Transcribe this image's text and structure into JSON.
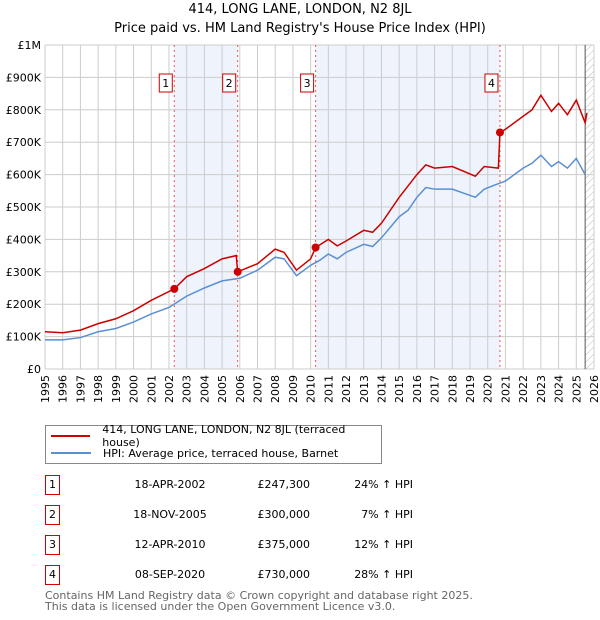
{
  "chart_data": {
    "type": "line",
    "title": "414, LONG LANE, LONDON, N2 8JL",
    "subtitle": "Price paid vs. HM Land Registry's House Price Index (HPI)",
    "xlim": [
      1995,
      2026
    ],
    "ylim": [
      0,
      1000000
    ],
    "yticks": [
      {
        "v": 0,
        "label": "£0"
      },
      {
        "v": 100000,
        "label": "£100K"
      },
      {
        "v": 200000,
        "label": "£200K"
      },
      {
        "v": 300000,
        "label": "£300K"
      },
      {
        "v": 400000,
        "label": "£400K"
      },
      {
        "v": 500000,
        "label": "£500K"
      },
      {
        "v": 600000,
        "label": "£600K"
      },
      {
        "v": 700000,
        "label": "£700K"
      },
      {
        "v": 800000,
        "label": "£800K"
      },
      {
        "v": 900000,
        "label": "£900K"
      },
      {
        "v": 1000000,
        "label": "£1M"
      }
    ],
    "xticks": [
      "1995",
      "1996",
      "1997",
      "1998",
      "1999",
      "2000",
      "2001",
      "2002",
      "2003",
      "2004",
      "2005",
      "2006",
      "2007",
      "2008",
      "2009",
      "2010",
      "2011",
      "2012",
      "2013",
      "2014",
      "2015",
      "2016",
      "2017",
      "2018",
      "2019",
      "2020",
      "2021",
      "2022",
      "2023",
      "2024",
      "2025",
      "2026"
    ],
    "grid": true,
    "series": [
      {
        "name": "414, LONG LANE, LONDON, N2 8JL (terraced house)",
        "color": "#cc0000",
        "points": [
          [
            1995,
            115000
          ],
          [
            1996,
            112000
          ],
          [
            1997,
            120000
          ],
          [
            1998,
            140000
          ],
          [
            1999,
            155000
          ],
          [
            2000,
            180000
          ],
          [
            2001,
            212000
          ],
          [
            2002.3,
            247300
          ],
          [
            2003,
            285000
          ],
          [
            2004,
            310000
          ],
          [
            2005,
            340000
          ],
          [
            2005.8,
            350000
          ],
          [
            2005.88,
            300000
          ],
          [
            2007,
            325000
          ],
          [
            2008,
            370000
          ],
          [
            2008.5,
            360000
          ],
          [
            2009.2,
            305000
          ],
          [
            2010,
            340000
          ],
          [
            2010.28,
            375000
          ],
          [
            2011,
            400000
          ],
          [
            2011.5,
            380000
          ],
          [
            2012,
            395000
          ],
          [
            2013,
            428000
          ],
          [
            2013.5,
            422000
          ],
          [
            2014,
            450000
          ],
          [
            2015,
            530000
          ],
          [
            2016,
            600000
          ],
          [
            2016.5,
            630000
          ],
          [
            2017,
            620000
          ],
          [
            2018,
            625000
          ],
          [
            2019.3,
            595000
          ],
          [
            2019.8,
            625000
          ],
          [
            2020.6,
            620000
          ],
          [
            2020.69,
            730000
          ],
          [
            2021,
            740000
          ],
          [
            2022,
            780000
          ],
          [
            2022.5,
            800000
          ],
          [
            2023,
            845000
          ],
          [
            2023.6,
            795000
          ],
          [
            2024,
            820000
          ],
          [
            2024.5,
            785000
          ],
          [
            2025,
            830000
          ],
          [
            2025.5,
            760000
          ],
          [
            2025.6,
            790000
          ]
        ]
      },
      {
        "name": "HPI: Average price, terraced house, Barnet",
        "color": "#5b8fd4",
        "points": [
          [
            1995,
            90000
          ],
          [
            1996,
            90000
          ],
          [
            1997,
            97000
          ],
          [
            1998,
            115000
          ],
          [
            1999,
            125000
          ],
          [
            2000,
            145000
          ],
          [
            2001,
            170000
          ],
          [
            2002,
            190000
          ],
          [
            2003,
            225000
          ],
          [
            2004,
            250000
          ],
          [
            2005,
            272000
          ],
          [
            2006,
            280000
          ],
          [
            2007,
            305000
          ],
          [
            2008,
            345000
          ],
          [
            2008.5,
            340000
          ],
          [
            2009.2,
            288000
          ],
          [
            2010,
            320000
          ],
          [
            2010.5,
            335000
          ],
          [
            2011,
            355000
          ],
          [
            2011.5,
            340000
          ],
          [
            2012,
            360000
          ],
          [
            2013,
            385000
          ],
          [
            2013.5,
            378000
          ],
          [
            2014,
            405000
          ],
          [
            2015,
            470000
          ],
          [
            2015.5,
            490000
          ],
          [
            2016,
            530000
          ],
          [
            2016.5,
            560000
          ],
          [
            2017,
            555000
          ],
          [
            2018,
            555000
          ],
          [
            2019.3,
            530000
          ],
          [
            2019.8,
            555000
          ],
          [
            2020.5,
            570000
          ],
          [
            2021,
            580000
          ],
          [
            2022,
            620000
          ],
          [
            2022.5,
            635000
          ],
          [
            2023,
            660000
          ],
          [
            2023.6,
            625000
          ],
          [
            2024,
            640000
          ],
          [
            2024.5,
            620000
          ],
          [
            2025,
            650000
          ],
          [
            2025.5,
            600000
          ]
        ]
      }
    ],
    "sales": [
      {
        "label": "1",
        "x": 2002.3,
        "y": 247300
      },
      {
        "label": "2",
        "x": 2005.88,
        "y": 300000
      },
      {
        "label": "3",
        "x": 2010.28,
        "y": 375000
      },
      {
        "label": "4",
        "x": 2020.69,
        "y": 730000
      }
    ],
    "shaded": [
      [
        2002.3,
        2005.88
      ],
      [
        2010.28,
        2020.69
      ]
    ],
    "forecast_from": 2025.5,
    "legend": "below"
  },
  "legend": {
    "red": "414, LONG LANE, LONDON, N2 8JL (terraced house)",
    "blue": "HPI: Average price, terraced house, Barnet"
  },
  "table": [
    {
      "num": "1",
      "date": "18-APR-2002",
      "price": "£247,300",
      "hpi": "24% ↑ HPI"
    },
    {
      "num": "2",
      "date": "18-NOV-2005",
      "price": "£300,000",
      "hpi": "7% ↑ HPI"
    },
    {
      "num": "3",
      "date": "12-APR-2010",
      "price": "£375,000",
      "hpi": "12% ↑ HPI"
    },
    {
      "num": "4",
      "date": "08-SEP-2020",
      "price": "£730,000",
      "hpi": "28% ↑ HPI"
    }
  ],
  "footer": {
    "line1": "Contains HM Land Registry data © Crown copyright and database right 2025.",
    "line2": "This data is licensed under the Open Government Licence v3.0."
  }
}
